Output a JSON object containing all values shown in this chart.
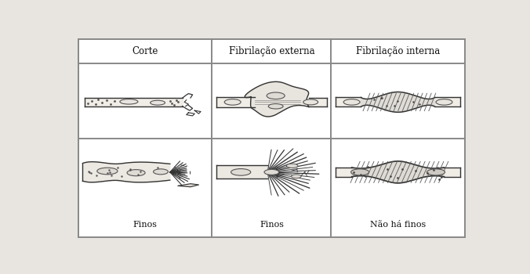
{
  "col_headers": [
    "Corte",
    "Fibrilação externa",
    "Fibrilação interna"
  ],
  "row_labels": [
    "Finos",
    "Finos",
    "Não há finos"
  ],
  "bg_color": "#f5f3ef",
  "border_color": "#888888",
  "text_color": "#111111",
  "fig_width": 6.76,
  "fig_height": 3.5,
  "dpi": 100
}
